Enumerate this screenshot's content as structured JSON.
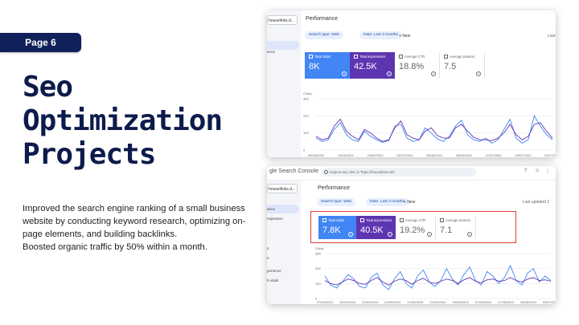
{
  "page_badge": "Page 6",
  "title_lines": [
    "Seo",
    "Optimization",
    "Projects"
  ],
  "description": [
    "Improved the search engine ranking of a small business website by conducting keyword research, optimizing on-page elements, and building backlinks.",
    "Boosted organic traffic by 50% within a month."
  ],
  "colors": {
    "badge": "#10205a",
    "title": "#0d1b4c",
    "clicks": "#4285f4",
    "impressions": "#5e35b1"
  },
  "shot1": {
    "property": "houselinks.d...",
    "sidebar_item": "ance",
    "heading": "Performance",
    "chips": [
      "Search type: Web",
      "Date: Last 3 months"
    ],
    "new_button": "New",
    "last_label": "Last",
    "cards": [
      {
        "label": "Total clicks",
        "value": "8K"
      },
      {
        "label": "Total impressions",
        "value": "42.5K"
      },
      {
        "label": "Average CTR",
        "value": "18.8%"
      },
      {
        "label": "Average position",
        "value": "7.5"
      }
    ],
    "chart_data": {
      "type": "line",
      "ylabel": "Clicks",
      "ylim": [
        0,
        300
      ],
      "y_ticks": [
        "300",
        "200",
        "100",
        "0"
      ],
      "x_ticks": [
        "05/06/2024",
        "13/06/2024",
        "22/06/2024",
        "01/07/2024",
        "09/06/2024",
        "18/06/2024",
        "27/07/2024",
        "15/07/2024",
        "24/07/2024"
      ],
      "series": [
        {
          "values": [
            70,
            50,
            60,
            120,
            160,
            90,
            60,
            50,
            110,
            80,
            60,
            45,
            55,
            140,
            150,
            70,
            50,
            60,
            130,
            100,
            65,
            50,
            80,
            140,
            175,
            90,
            60,
            50,
            70,
            40,
            60,
            120,
            180,
            70,
            40,
            60,
            200,
            140,
            90,
            60
          ]
        },
        {
          "values": [
            80,
            60,
            70,
            140,
            180,
            110,
            80,
            60,
            120,
            100,
            70,
            50,
            60,
            130,
            170,
            90,
            70,
            60,
            110,
            130,
            85,
            70,
            70,
            130,
            150,
            110,
            75,
            60,
            60,
            55,
            70,
            100,
            150,
            90,
            60,
            80,
            150,
            160,
            110,
            70
          ]
        }
      ]
    }
  },
  "shot2": {
    "app_name": "gle Search Console",
    "search_placeholder": "Inspect any URL in 'https://houselinks.de/'",
    "property": "housellinks.d...",
    "sidebar_items": [
      "ance",
      "nspection",
      "s",
      "e",
      "perience",
      "b vitals"
    ],
    "heading": "Performance",
    "chips": [
      "Search type: Web",
      "Date: Last 3 months"
    ],
    "new_button": "New",
    "last_updated": "Last updated 2",
    "cards": [
      {
        "label": "Total clicks",
        "value": "7.8K"
      },
      {
        "label": "Total impressions",
        "value": "40.5K"
      },
      {
        "label": "Average CTR",
        "value": "19.2%"
      },
      {
        "label": "Average position",
        "value": "7.1"
      }
    ],
    "chart_data": {
      "type": "line",
      "ylabel": "Clicks",
      "ylim": [
        0,
        300
      ],
      "y_ticks": [
        "300",
        "200",
        "100",
        "0"
      ],
      "x_ticks": [
        "07/04/2024",
        "15/04/2024",
        "23/04/2024",
        "02/05/2024",
        "12/05/2024",
        "21/05/2024",
        "29/05/2024",
        "07/06/2024",
        "17/06/2024",
        "25/06/2024",
        "03/07/2024"
      ],
      "series": [
        {
          "values": [
            150,
            90,
            70,
            110,
            160,
            130,
            80,
            70,
            140,
            170,
            90,
            60,
            130,
            180,
            100,
            70,
            150,
            190,
            110,
            80,
            120,
            200,
            130,
            90,
            160,
            210,
            120,
            90,
            180,
            150,
            100,
            140,
            220,
            120,
            90,
            170,
            200,
            110,
            150,
            120
          ]
        },
        {
          "values": [
            120,
            100,
            90,
            110,
            130,
            120,
            100,
            95,
            120,
            140,
            110,
            90,
            115,
            130,
            120,
            95,
            120,
            135,
            110,
            100,
            115,
            130,
            120,
            100,
            125,
            140,
            115,
            105,
            125,
            130,
            115,
            120,
            140,
            120,
            110,
            130,
            140,
            120,
            125,
            115
          ]
        }
      ]
    }
  }
}
